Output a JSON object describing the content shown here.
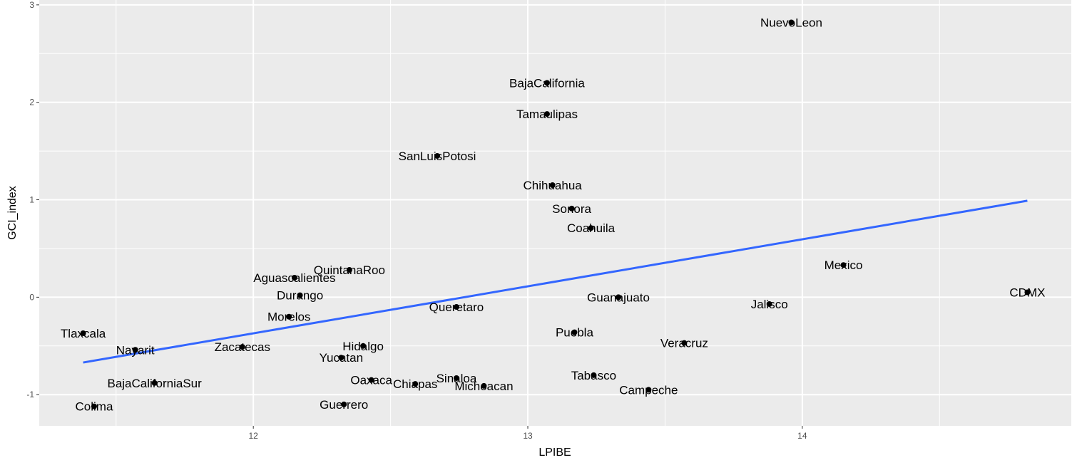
{
  "chart_data": {
    "type": "scatter",
    "xlabel": "LPIBE",
    "ylabel": "GCI_index",
    "xlim": [
      11.22,
      14.98
    ],
    "ylim": [
      -1.32,
      3.05
    ],
    "x_ticks": [
      12,
      13,
      14
    ],
    "y_ticks": [
      -1,
      0,
      1,
      2,
      3
    ],
    "x_tick_labels": [
      "12",
      "13",
      "14"
    ],
    "y_tick_labels": [
      "-1",
      "0",
      "1",
      "2",
      "3"
    ],
    "grid": true,
    "colors": {
      "panel": "#ebebeb",
      "grid": "#ffffff",
      "point": "#000000",
      "trend": "#3366ff"
    },
    "trend_line": {
      "x": [
        11.38,
        14.82
      ],
      "y": [
        -0.67,
        0.99
      ]
    },
    "points": [
      {
        "label": "NuevoLeon",
        "x": 13.96,
        "y": 2.82
      },
      {
        "label": "BajaCalifornia",
        "x": 13.07,
        "y": 2.2
      },
      {
        "label": "Tamaulipas",
        "x": 13.07,
        "y": 1.88
      },
      {
        "label": "SanLuisPotosi",
        "x": 12.67,
        "y": 1.45
      },
      {
        "label": "Chihuahua",
        "x": 13.09,
        "y": 1.15
      },
      {
        "label": "Sonora",
        "x": 13.16,
        "y": 0.91
      },
      {
        "label": "Coahuila",
        "x": 13.23,
        "y": 0.71
      },
      {
        "label": "Mexico",
        "x": 14.15,
        "y": 0.33
      },
      {
        "label": "QuintanaRoo",
        "x": 12.35,
        "y": 0.28
      },
      {
        "label": "Aguascalientes",
        "x": 12.15,
        "y": 0.2
      },
      {
        "label": "CDMX",
        "x": 14.82,
        "y": 0.05
      },
      {
        "label": "Durango",
        "x": 12.17,
        "y": 0.02
      },
      {
        "label": "Guanajuato",
        "x": 13.33,
        "y": 0.0
      },
      {
        "label": "Jalisco",
        "x": 13.88,
        "y": -0.07
      },
      {
        "label": "Queretaro",
        "x": 12.74,
        "y": -0.1
      },
      {
        "label": "Morelos",
        "x": 12.13,
        "y": -0.2
      },
      {
        "label": "Tlaxcala",
        "x": 11.38,
        "y": -0.37
      },
      {
        "label": "Puebla",
        "x": 13.17,
        "y": -0.36
      },
      {
        "label": "Veracruz",
        "x": 13.57,
        "y": -0.47
      },
      {
        "label": "Hidalgo",
        "x": 12.4,
        "y": -0.5
      },
      {
        "label": "Zacatecas",
        "x": 11.96,
        "y": -0.51
      },
      {
        "label": "Nayarit",
        "x": 11.57,
        "y": -0.54
      },
      {
        "label": "Yucatan",
        "x": 12.32,
        "y": -0.62
      },
      {
        "label": "Tabasco",
        "x": 13.24,
        "y": -0.8
      },
      {
        "label": "Oaxaca",
        "x": 12.43,
        "y": -0.85
      },
      {
        "label": "Sinaloa",
        "x": 12.74,
        "y": -0.83
      },
      {
        "label": "BajaCaliforniaSur",
        "x": 11.64,
        "y": -0.88
      },
      {
        "label": "Chiapas",
        "x": 12.59,
        "y": -0.89
      },
      {
        "label": "Michoacan",
        "x": 12.84,
        "y": -0.91
      },
      {
        "label": "Campeche",
        "x": 13.44,
        "y": -0.95
      },
      {
        "label": "Guerrero",
        "x": 12.33,
        "y": -1.1
      },
      {
        "label": "Colima",
        "x": 11.42,
        "y": -1.12
      }
    ]
  }
}
